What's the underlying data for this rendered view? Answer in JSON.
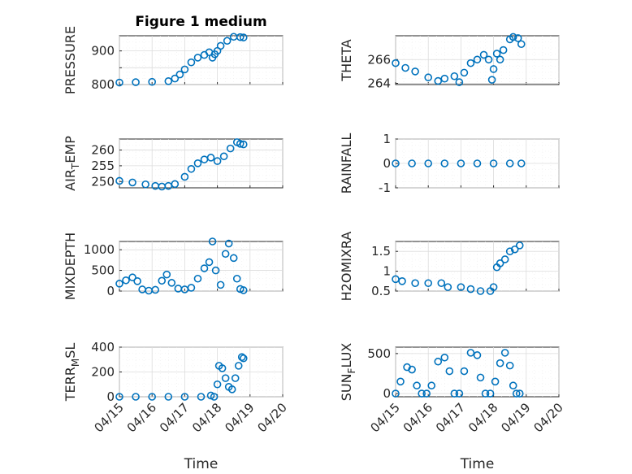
{
  "chart_data": [
    {
      "type": "scatter",
      "title": "Figure 1 medium",
      "ylabel": "PRESSURE",
      "ylabel_parts": {
        "main": "PRESSURE"
      },
      "xlabel": "",
      "xlim": [
        0,
        5
      ],
      "x_tick_labels": [
        "04/15",
        "04/16",
        "04/17",
        "04/18",
        "04/19",
        "04/20"
      ],
      "show_x_tick_labels": false,
      "ylim": [
        800,
        945
      ],
      "yticks": [
        800,
        850,
        900
      ],
      "ytick_labels": [
        "800",
        "",
        "900"
      ],
      "series": [
        {
          "x": [
            0,
            0.5,
            1.0,
            1.5,
            1.7,
            1.85,
            2.0,
            2.2,
            2.4,
            2.6,
            2.75,
            2.85,
            2.92,
            3.0,
            3.1,
            3.3,
            3.5,
            3.7,
            3.8
          ],
          "y": [
            806,
            807,
            808,
            810,
            818,
            830,
            845,
            866,
            880,
            888,
            896,
            880,
            890,
            900,
            915,
            930,
            942,
            941,
            940
          ]
        }
      ]
    },
    {
      "type": "scatter",
      "title": "",
      "ylabel": "THETA",
      "ylabel_parts": {
        "main": "THETA"
      },
      "xlabel": "",
      "xlim": [
        0,
        5
      ],
      "x_tick_labels": [
        "04/15",
        "04/16",
        "04/17",
        "04/18",
        "04/19",
        "04/20"
      ],
      "show_x_tick_labels": false,
      "ylim": [
        263.9,
        268.0
      ],
      "yticks": [
        264,
        266
      ],
      "ytick_labels": [
        "264",
        "266"
      ],
      "series": [
        {
          "x": [
            0,
            0.3,
            0.6,
            1.0,
            1.3,
            1.5,
            1.8,
            1.95,
            2.1,
            2.3,
            2.5,
            2.7,
            2.85,
            2.95,
            3.0,
            3.1,
            3.2,
            3.3,
            3.5,
            3.6,
            3.75,
            3.85
          ],
          "y": [
            265.7,
            265.3,
            265.0,
            264.5,
            264.2,
            264.4,
            264.6,
            264.1,
            264.9,
            265.7,
            266.0,
            266.4,
            266.0,
            264.3,
            265.2,
            266.5,
            266.0,
            266.8,
            267.7,
            267.9,
            267.8,
            267.3
          ]
        }
      ]
    },
    {
      "type": "scatter",
      "title": "",
      "ylabel": "AIR_TEMP",
      "ylabel_parts": {
        "main": "AIR",
        "sub": "T",
        "tail": "EMP"
      },
      "xlabel": "",
      "xlim": [
        0,
        5
      ],
      "x_tick_labels": [
        "04/15",
        "04/16",
        "04/17",
        "04/18",
        "04/19",
        "04/20"
      ],
      "show_x_tick_labels": false,
      "ylim": [
        248,
        263.5
      ],
      "yticks": [
        250,
        255,
        260
      ],
      "ytick_labels": [
        "250",
        "255",
        "260"
      ],
      "series": [
        {
          "x": [
            0,
            0.4,
            0.8,
            1.1,
            1.3,
            1.5,
            1.7,
            2.0,
            2.2,
            2.4,
            2.6,
            2.8,
            3.0,
            3.2,
            3.4,
            3.6,
            3.7,
            3.8
          ],
          "y": [
            250.2,
            249.7,
            249.1,
            248.6,
            248.4,
            248.6,
            249.2,
            251.5,
            254.0,
            255.8,
            257.0,
            257.6,
            256.5,
            258.0,
            260.5,
            262.5,
            262.0,
            261.8
          ]
        }
      ]
    },
    {
      "type": "scatter",
      "title": "",
      "ylabel": "RAINFALL",
      "ylabel_parts": {
        "main": "RAINFALL"
      },
      "xlabel": "",
      "xlim": [
        0,
        5
      ],
      "x_tick_labels": [
        "04/15",
        "04/16",
        "04/17",
        "04/18",
        "04/19",
        "04/20"
      ],
      "show_x_tick_labels": false,
      "ylim": [
        -1,
        1
      ],
      "yticks": [
        -1,
        0,
        1
      ],
      "ytick_labels": [
        "-1",
        "0",
        "1"
      ],
      "series": [
        {
          "x": [
            0,
            0.5,
            1.0,
            1.5,
            2.0,
            2.5,
            3.0,
            3.5,
            3.85
          ],
          "y": [
            0,
            0,
            0,
            0,
            0,
            0,
            0,
            0,
            0
          ]
        }
      ]
    },
    {
      "type": "scatter",
      "title": "",
      "ylabel": "MIXDEPTH",
      "ylabel_parts": {
        "main": "MIXDEPTH"
      },
      "xlabel": "",
      "xlim": [
        0,
        5
      ],
      "x_tick_labels": [
        "04/15",
        "04/16",
        "04/17",
        "04/18",
        "04/19",
        "04/20"
      ],
      "show_x_tick_labels": false,
      "ylim": [
        0,
        1200
      ],
      "yticks": [
        0,
        500,
        1000
      ],
      "ytick_labels": [
        "0",
        "500",
        "1000"
      ],
      "series": [
        {
          "x": [
            0,
            0.2,
            0.4,
            0.55,
            0.7,
            0.9,
            1.1,
            1.3,
            1.45,
            1.6,
            1.8,
            2.0,
            2.2,
            2.4,
            2.6,
            2.75,
            2.85,
            2.95,
            3.1,
            3.25,
            3.35,
            3.5,
            3.6,
            3.7,
            3.8
          ],
          "y": [
            180,
            260,
            330,
            240,
            40,
            10,
            30,
            250,
            400,
            200,
            60,
            40,
            80,
            300,
            550,
            700,
            1200,
            500,
            150,
            900,
            1150,
            800,
            300,
            50,
            20
          ]
        }
      ]
    },
    {
      "type": "scatter",
      "title": "",
      "ylabel": "H2OMIXRA",
      "ylabel_parts": {
        "main": "H2OMIXRA"
      },
      "xlabel": "",
      "xlim": [
        0,
        5
      ],
      "x_tick_labels": [
        "04/15",
        "04/16",
        "04/17",
        "04/18",
        "04/19",
        "04/20"
      ],
      "show_x_tick_labels": false,
      "ylim": [
        0.5,
        1.75
      ],
      "yticks": [
        0.5,
        1.0,
        1.5
      ],
      "ytick_labels": [
        "0.5",
        "1",
        "1.5"
      ],
      "series": [
        {
          "x": [
            0,
            0.2,
            0.6,
            1.0,
            1.4,
            1.6,
            2.0,
            2.3,
            2.6,
            2.9,
            3.0,
            3.1,
            3.2,
            3.35,
            3.5,
            3.65,
            3.8
          ],
          "y": [
            0.8,
            0.75,
            0.7,
            0.7,
            0.7,
            0.6,
            0.6,
            0.55,
            0.5,
            0.5,
            0.6,
            1.1,
            1.2,
            1.3,
            1.5,
            1.55,
            1.65
          ]
        }
      ]
    },
    {
      "type": "scatter",
      "title": "",
      "ylabel": "TERR_MSL",
      "ylabel_parts": {
        "main": "TERR",
        "sub": "M",
        "tail": "SL"
      },
      "xlabel": "Time",
      "xlim": [
        0,
        5
      ],
      "x_tick_labels": [
        "04/15",
        "04/16",
        "04/17",
        "04/18",
        "04/19",
        "04/20"
      ],
      "show_x_tick_labels": true,
      "ylim": [
        0,
        400
      ],
      "yticks": [
        0,
        200,
        400
      ],
      "ytick_labels": [
        "0",
        "200",
        "400"
      ],
      "series": [
        {
          "x": [
            0,
            0.5,
            1.0,
            1.5,
            2.0,
            2.5,
            2.8,
            2.9,
            3.0,
            3.05,
            3.15,
            3.25,
            3.35,
            3.45,
            3.55,
            3.65,
            3.75,
            3.8
          ],
          "y": [
            0,
            0,
            0,
            0,
            0,
            0,
            10,
            0,
            100,
            250,
            230,
            150,
            80,
            60,
            150,
            250,
            320,
            310
          ]
        }
      ]
    },
    {
      "type": "scatter",
      "title": "",
      "ylabel": "SUN_FLUX",
      "ylabel_parts": {
        "main": "SUN",
        "sub": "F",
        "tail": "LUX"
      },
      "xlabel": "Time",
      "xlim": [
        0,
        5
      ],
      "x_tick_labels": [
        "04/15",
        "04/16",
        "04/17",
        "04/18",
        "04/19",
        "04/20"
      ],
      "show_x_tick_labels": true,
      "ylim": [
        -40,
        580
      ],
      "yticks": [
        0,
        500
      ],
      "ytick_labels": [
        "0",
        "500"
      ],
      "series": [
        {
          "x": [
            0,
            0.15,
            0.35,
            0.5,
            0.65,
            0.8,
            0.95,
            1.1,
            1.3,
            1.5,
            1.65,
            1.8,
            1.95,
            2.1,
            2.3,
            2.5,
            2.6,
            2.75,
            2.9,
            3.05,
            3.2,
            3.35,
            3.5,
            3.6,
            3.7,
            3.8
          ],
          "y": [
            0,
            150,
            330,
            300,
            100,
            0,
            0,
            100,
            400,
            450,
            280,
            0,
            0,
            280,
            510,
            480,
            200,
            0,
            0,
            150,
            380,
            510,
            350,
            100,
            0,
            0
          ]
        }
      ]
    }
  ]
}
